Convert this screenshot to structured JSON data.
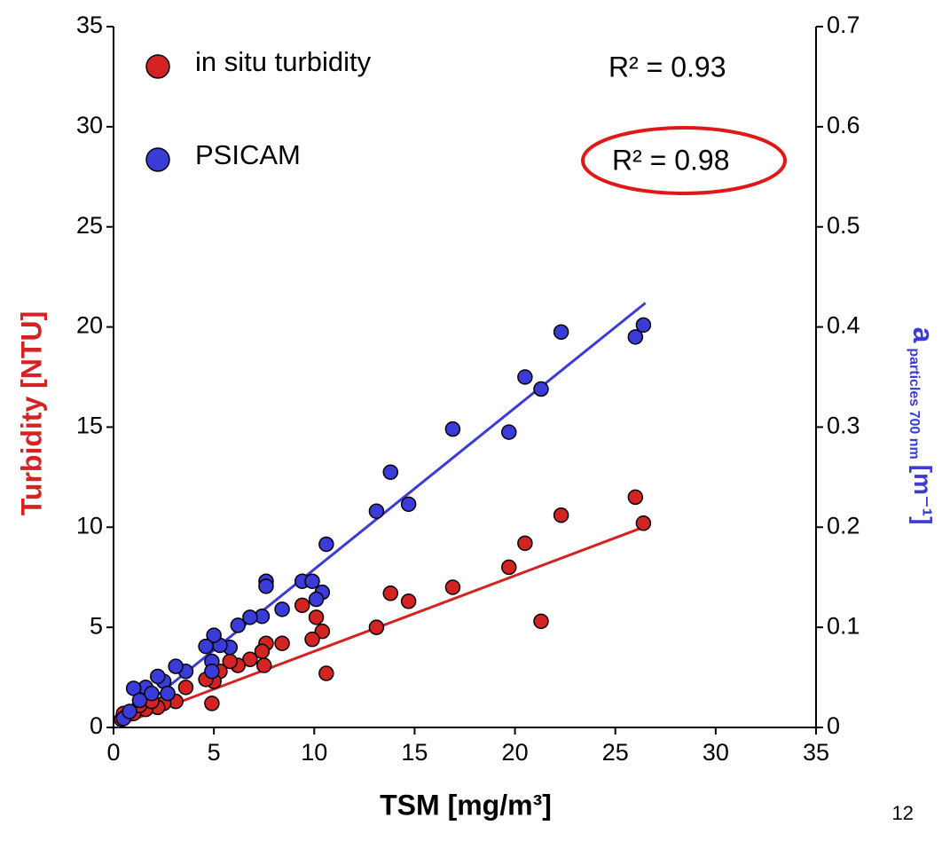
{
  "chart_data": {
    "type": "scatter",
    "xlabel": "TSM [mg/m³]",
    "ylabel": "Turbidity [NTU]",
    "y2label": [
      "a",
      "particles 700 nm",
      "[m⁻¹]"
    ],
    "xlim": [
      0,
      35
    ],
    "xticks": [
      0,
      5,
      10,
      15,
      20,
      25,
      30,
      35
    ],
    "ylim": [
      0,
      35
    ],
    "yticks": [
      0,
      5,
      10,
      15,
      20,
      25,
      30,
      35
    ],
    "y2lim": [
      0,
      0.7
    ],
    "y2ticks": [
      0,
      0.1,
      0.2,
      0.3,
      0.4,
      0.5,
      0.6,
      0.7
    ],
    "annotations": [
      "R² = 0.93",
      "R² = 0.98",
      "12"
    ],
    "series": [
      {
        "name": "in situ turbidity",
        "color": "#d42323",
        "x": [
          26.0,
          26.4,
          22.3,
          20.5,
          19.7,
          21.3,
          16.9,
          14.7,
          13.8,
          13.1,
          9.4,
          10.1,
          10.4,
          9.9,
          10.6,
          8.4,
          7.6,
          7.4,
          7.5,
          6.8,
          6.2,
          5.8,
          5.3,
          4.9,
          5.0,
          4.6,
          3.6,
          3.1,
          2.5,
          2.2,
          1.6,
          1.0,
          0.4,
          0.5,
          1.3,
          1.9
        ],
        "values": [
          11.5,
          10.2,
          10.6,
          9.2,
          8.0,
          5.3,
          7.0,
          6.3,
          6.7,
          5.0,
          6.1,
          5.5,
          4.8,
          4.4,
          2.7,
          4.2,
          4.2,
          3.8,
          3.1,
          3.4,
          3.1,
          3.3,
          2.8,
          1.2,
          2.3,
          2.4,
          2.0,
          1.3,
          1.2,
          1.0,
          0.9,
          0.7,
          0.4,
          0.7,
          1.1,
          1.3
        ]
      },
      {
        "name": "PSICAM",
        "color": "#3b3bd8",
        "axis": "y2",
        "x": [
          26.4,
          26.0,
          22.3,
          20.5,
          21.3,
          16.9,
          19.7,
          13.8,
          14.7,
          13.1,
          10.6,
          7.6,
          7.6,
          9.4,
          9.9,
          10.4,
          10.1,
          8.4,
          7.4,
          6.8,
          6.2,
          5.8,
          5.3,
          5.0,
          4.6,
          4.9,
          4.9,
          3.6,
          3.1,
          2.5,
          2.2,
          1.6,
          1.0,
          1.3,
          0.5,
          0.8,
          1.9,
          2.7
        ],
        "values": [
          0.402,
          0.39,
          0.395,
          0.35,
          0.338,
          0.298,
          0.295,
          0.255,
          0.223,
          0.216,
          0.183,
          0.146,
          0.141,
          0.146,
          0.146,
          0.135,
          0.128,
          0.118,
          0.111,
          0.11,
          0.102,
          0.08,
          0.082,
          0.092,
          0.081,
          0.066,
          0.056,
          0.056,
          0.061,
          0.046,
          0.051,
          0.04,
          0.039,
          0.027,
          0.009,
          0.016,
          0.034,
          0.034
        ]
      }
    ],
    "fits": [
      {
        "color": "#d42323",
        "x": [
          0.2,
          26.4
        ],
        "values": [
          0.1,
          10.0
        ]
      },
      {
        "color": "#3b3bd8",
        "axis": "y2",
        "x": [
          0.2,
          26.5
        ],
        "values": [
          0.0,
          0.424
        ]
      }
    ]
  }
}
